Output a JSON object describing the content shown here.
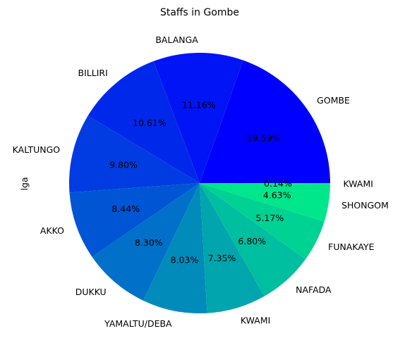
{
  "chart_data": {
    "type": "pie",
    "title": "Staffs in Gombe",
    "ylabel": "lga",
    "slices": [
      {
        "label": "GOMBE",
        "value": 19.59,
        "pct_label": "19.59%",
        "color": "#0000ff"
      },
      {
        "label": "BALANGA",
        "value": 11.16,
        "pct_label": "11.16%",
        "color": "#0014f5"
      },
      {
        "label": "BILLIRI",
        "value": 10.61,
        "pct_label": "10.61%",
        "color": "#0028eb"
      },
      {
        "label": "KALTUNGO",
        "value": 9.8,
        "pct_label": "9.80%",
        "color": "#003ce1"
      },
      {
        "label": "AKKO",
        "value": 8.44,
        "pct_label": "8.44%",
        "color": "#0055d5"
      },
      {
        "label": "DUKKU",
        "value": 8.3,
        "pct_label": "8.30%",
        "color": "#0070c8"
      },
      {
        "label": "YAMALTU/DEBA",
        "value": 8.03,
        "pct_label": "8.03%",
        "color": "#008bbb"
      },
      {
        "label": "KWAMI",
        "value": 7.35,
        "pct_label": "7.35%",
        "color": "#00a5ad"
      },
      {
        "label": "NAFADA",
        "value": 6.8,
        "pct_label": "6.80%",
        "color": "#00bea0"
      },
      {
        "label": "FUNAKAYE",
        "value": 5.17,
        "pct_label": "5.17%",
        "color": "#00d294"
      },
      {
        "label": "SHONGOM",
        "value": 4.63,
        "pct_label": "4.63%",
        "color": "#00e68a"
      },
      {
        "label": "KWAMI",
        "value": 0.14,
        "pct_label": "0.14%",
        "color": "#00f080"
      }
    ],
    "start_angle": "0 degrees (3 o'clock)",
    "direction": "counterclockwise"
  }
}
